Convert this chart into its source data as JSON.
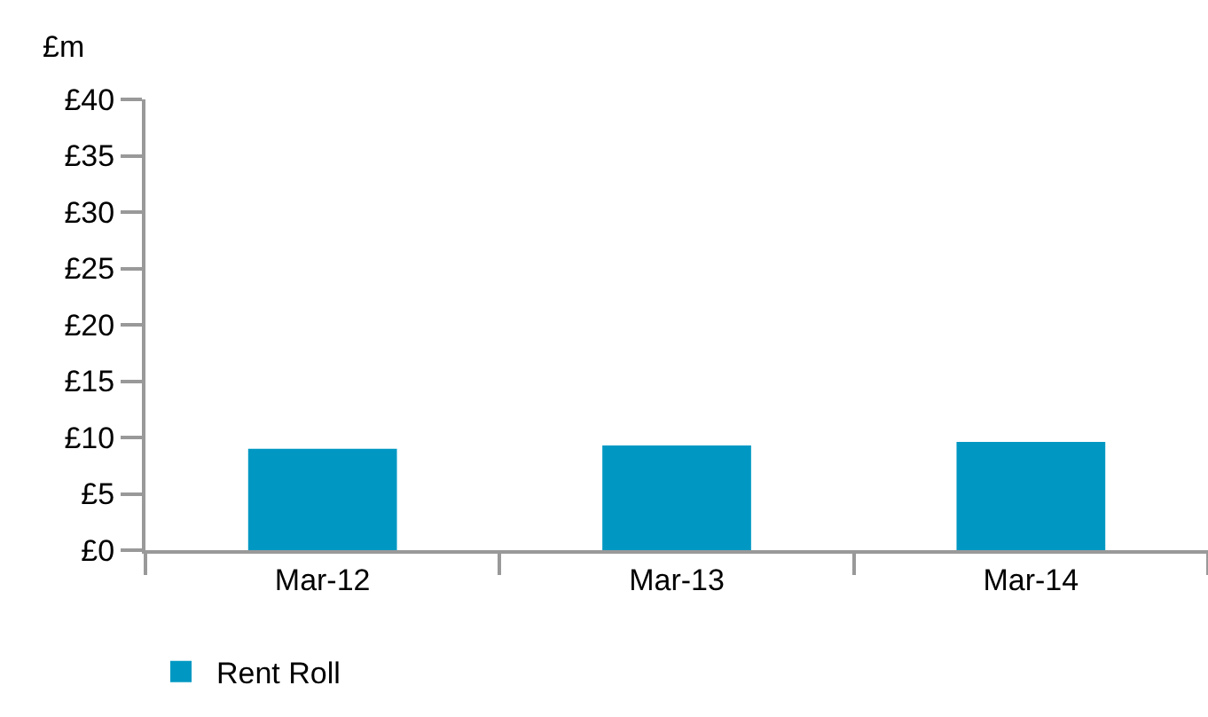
{
  "chart_data": {
    "type": "bar",
    "ylabel": "£m",
    "categories": [
      "Mar-12",
      "Mar-13",
      "Mar-14"
    ],
    "series": [
      {
        "name": "Rent Roll",
        "color": "#0098c3",
        "values": [
          9.0,
          9.3,
          9.6
        ]
      }
    ],
    "ylim": [
      0,
      40
    ],
    "yticks": [
      {
        "value": 0,
        "label": "£0"
      },
      {
        "value": 5,
        "label": "£5"
      },
      {
        "value": 10,
        "label": "£10"
      },
      {
        "value": 15,
        "label": "£15"
      },
      {
        "value": 20,
        "label": "£20"
      },
      {
        "value": 25,
        "label": "£25"
      },
      {
        "value": 30,
        "label": "£30"
      },
      {
        "value": 35,
        "label": "£35"
      },
      {
        "value": 40,
        "label": "£40"
      }
    ],
    "grid": false,
    "legend": "bottom left"
  }
}
